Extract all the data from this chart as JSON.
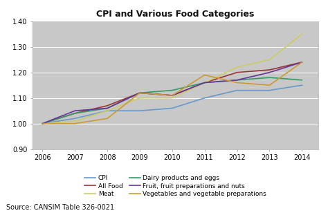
{
  "title": "CPI and Various Food Categories",
  "source": "Source: CANSIM Table 326-0021",
  "years": [
    2006,
    2007,
    2008,
    2009,
    2010,
    2011,
    2012,
    2013,
    2014
  ],
  "series": {
    "CPI": [
      1.0,
      1.02,
      1.05,
      1.05,
      1.06,
      1.1,
      1.13,
      1.13,
      1.15
    ],
    "All Food": [
      1.0,
      1.04,
      1.07,
      1.12,
      1.11,
      1.16,
      1.2,
      1.21,
      1.24
    ],
    "Meat": [
      1.0,
      1.01,
      1.05,
      1.1,
      1.1,
      1.16,
      1.22,
      1.25,
      1.35
    ],
    "Dairy products and eggs": [
      1.0,
      1.04,
      1.06,
      1.12,
      1.13,
      1.16,
      1.17,
      1.18,
      1.17
    ],
    "Fruit, fruit preparations and nuts": [
      1.0,
      1.05,
      1.06,
      1.12,
      1.11,
      1.16,
      1.17,
      1.2,
      1.24
    ],
    "Vegetables and vegetable preparations": [
      1.0,
      1.0,
      1.02,
      1.12,
      1.11,
      1.19,
      1.16,
      1.15,
      1.24
    ]
  },
  "colors": {
    "CPI": "#6699cc",
    "All Food": "#993333",
    "Meat": "#cccc66",
    "Dairy products and eggs": "#339966",
    "Fruit, fruit preparations and nuts": "#663399",
    "Vegetables and vegetable preparations": "#cc9933"
  },
  "legend_order_col1": [
    "CPI",
    "Meat",
    "Fruit, fruit preparations and nuts"
  ],
  "legend_order_col2": [
    "All Food",
    "Dairy products and eggs",
    "Vegetables and vegetable preparations"
  ],
  "ylim": [
    0.9,
    1.4
  ],
  "yticks": [
    0.9,
    1.0,
    1.1,
    1.2,
    1.3,
    1.4
  ],
  "fig_bg_color": "#ffffff",
  "plot_bg_color": "#c8c8c8",
  "title_fontsize": 9,
  "tick_fontsize": 7,
  "legend_fontsize": 6.5,
  "source_fontsize": 7
}
